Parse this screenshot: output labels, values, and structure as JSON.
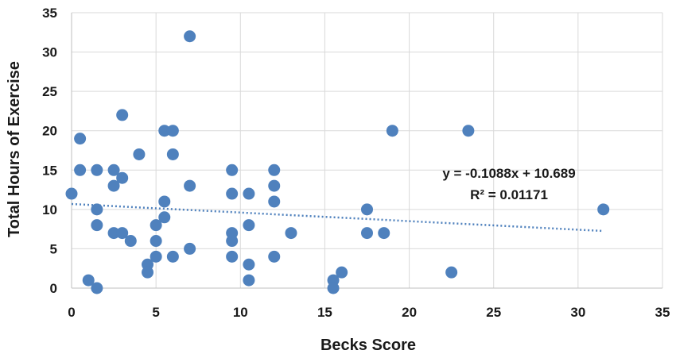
{
  "chart_data": {
    "type": "scatter",
    "title": "",
    "xlabel": "Becks Score",
    "ylabel": "Total Hours of Exercise",
    "xlim": [
      0,
      35
    ],
    "ylim": [
      0,
      35
    ],
    "x_ticks": [
      "0",
      "5",
      "10",
      "15",
      "20",
      "25",
      "30",
      "35"
    ],
    "y_ticks": [
      "0",
      "5",
      "10",
      "15",
      "20",
      "25",
      "30",
      "35"
    ],
    "grid": true,
    "legend": "none",
    "marker_color": "#4F81BD",
    "trendline": {
      "type": "linear",
      "slope": -0.1088,
      "intercept": 10.689,
      "x_range": [
        0,
        31.5
      ],
      "color": "#4F81BD",
      "style": "dotted",
      "equation_label": "y = -0.1088x + 10.689",
      "r2_label": "R² = 0.01171"
    },
    "points": [
      [
        0,
        12
      ],
      [
        0.5,
        19
      ],
      [
        0.5,
        15
      ],
      [
        1,
        1
      ],
      [
        1.5,
        15
      ],
      [
        1.5,
        10
      ],
      [
        1.5,
        8
      ],
      [
        1.5,
        0
      ],
      [
        2.5,
        15
      ],
      [
        2.5,
        13
      ],
      [
        2.5,
        7
      ],
      [
        3,
        22
      ],
      [
        3,
        14
      ],
      [
        3,
        7
      ],
      [
        3.5,
        6
      ],
      [
        4,
        17
      ],
      [
        4.5,
        3
      ],
      [
        4.5,
        2
      ],
      [
        5,
        8
      ],
      [
        5,
        6
      ],
      [
        5,
        4
      ],
      [
        5.5,
        20
      ],
      [
        5.5,
        11
      ],
      [
        5.5,
        9
      ],
      [
        6,
        20
      ],
      [
        6,
        17
      ],
      [
        6,
        4
      ],
      [
        7,
        32
      ],
      [
        7,
        13
      ],
      [
        7,
        5
      ],
      [
        9.5,
        15
      ],
      [
        9.5,
        12
      ],
      [
        9.5,
        7
      ],
      [
        9.5,
        6
      ],
      [
        9.5,
        4
      ],
      [
        10.5,
        12
      ],
      [
        10.5,
        8
      ],
      [
        10.5,
        3
      ],
      [
        10.5,
        1
      ],
      [
        12,
        15
      ],
      [
        12,
        13
      ],
      [
        12,
        11
      ],
      [
        12,
        4
      ],
      [
        13,
        7
      ],
      [
        15.5,
        1
      ],
      [
        15.5,
        0
      ],
      [
        16,
        2
      ],
      [
        17.5,
        10
      ],
      [
        17.5,
        7
      ],
      [
        18.5,
        7
      ],
      [
        19,
        20
      ],
      [
        22.5,
        2
      ],
      [
        23.5,
        20
      ],
      [
        31.5,
        10
      ]
    ]
  }
}
